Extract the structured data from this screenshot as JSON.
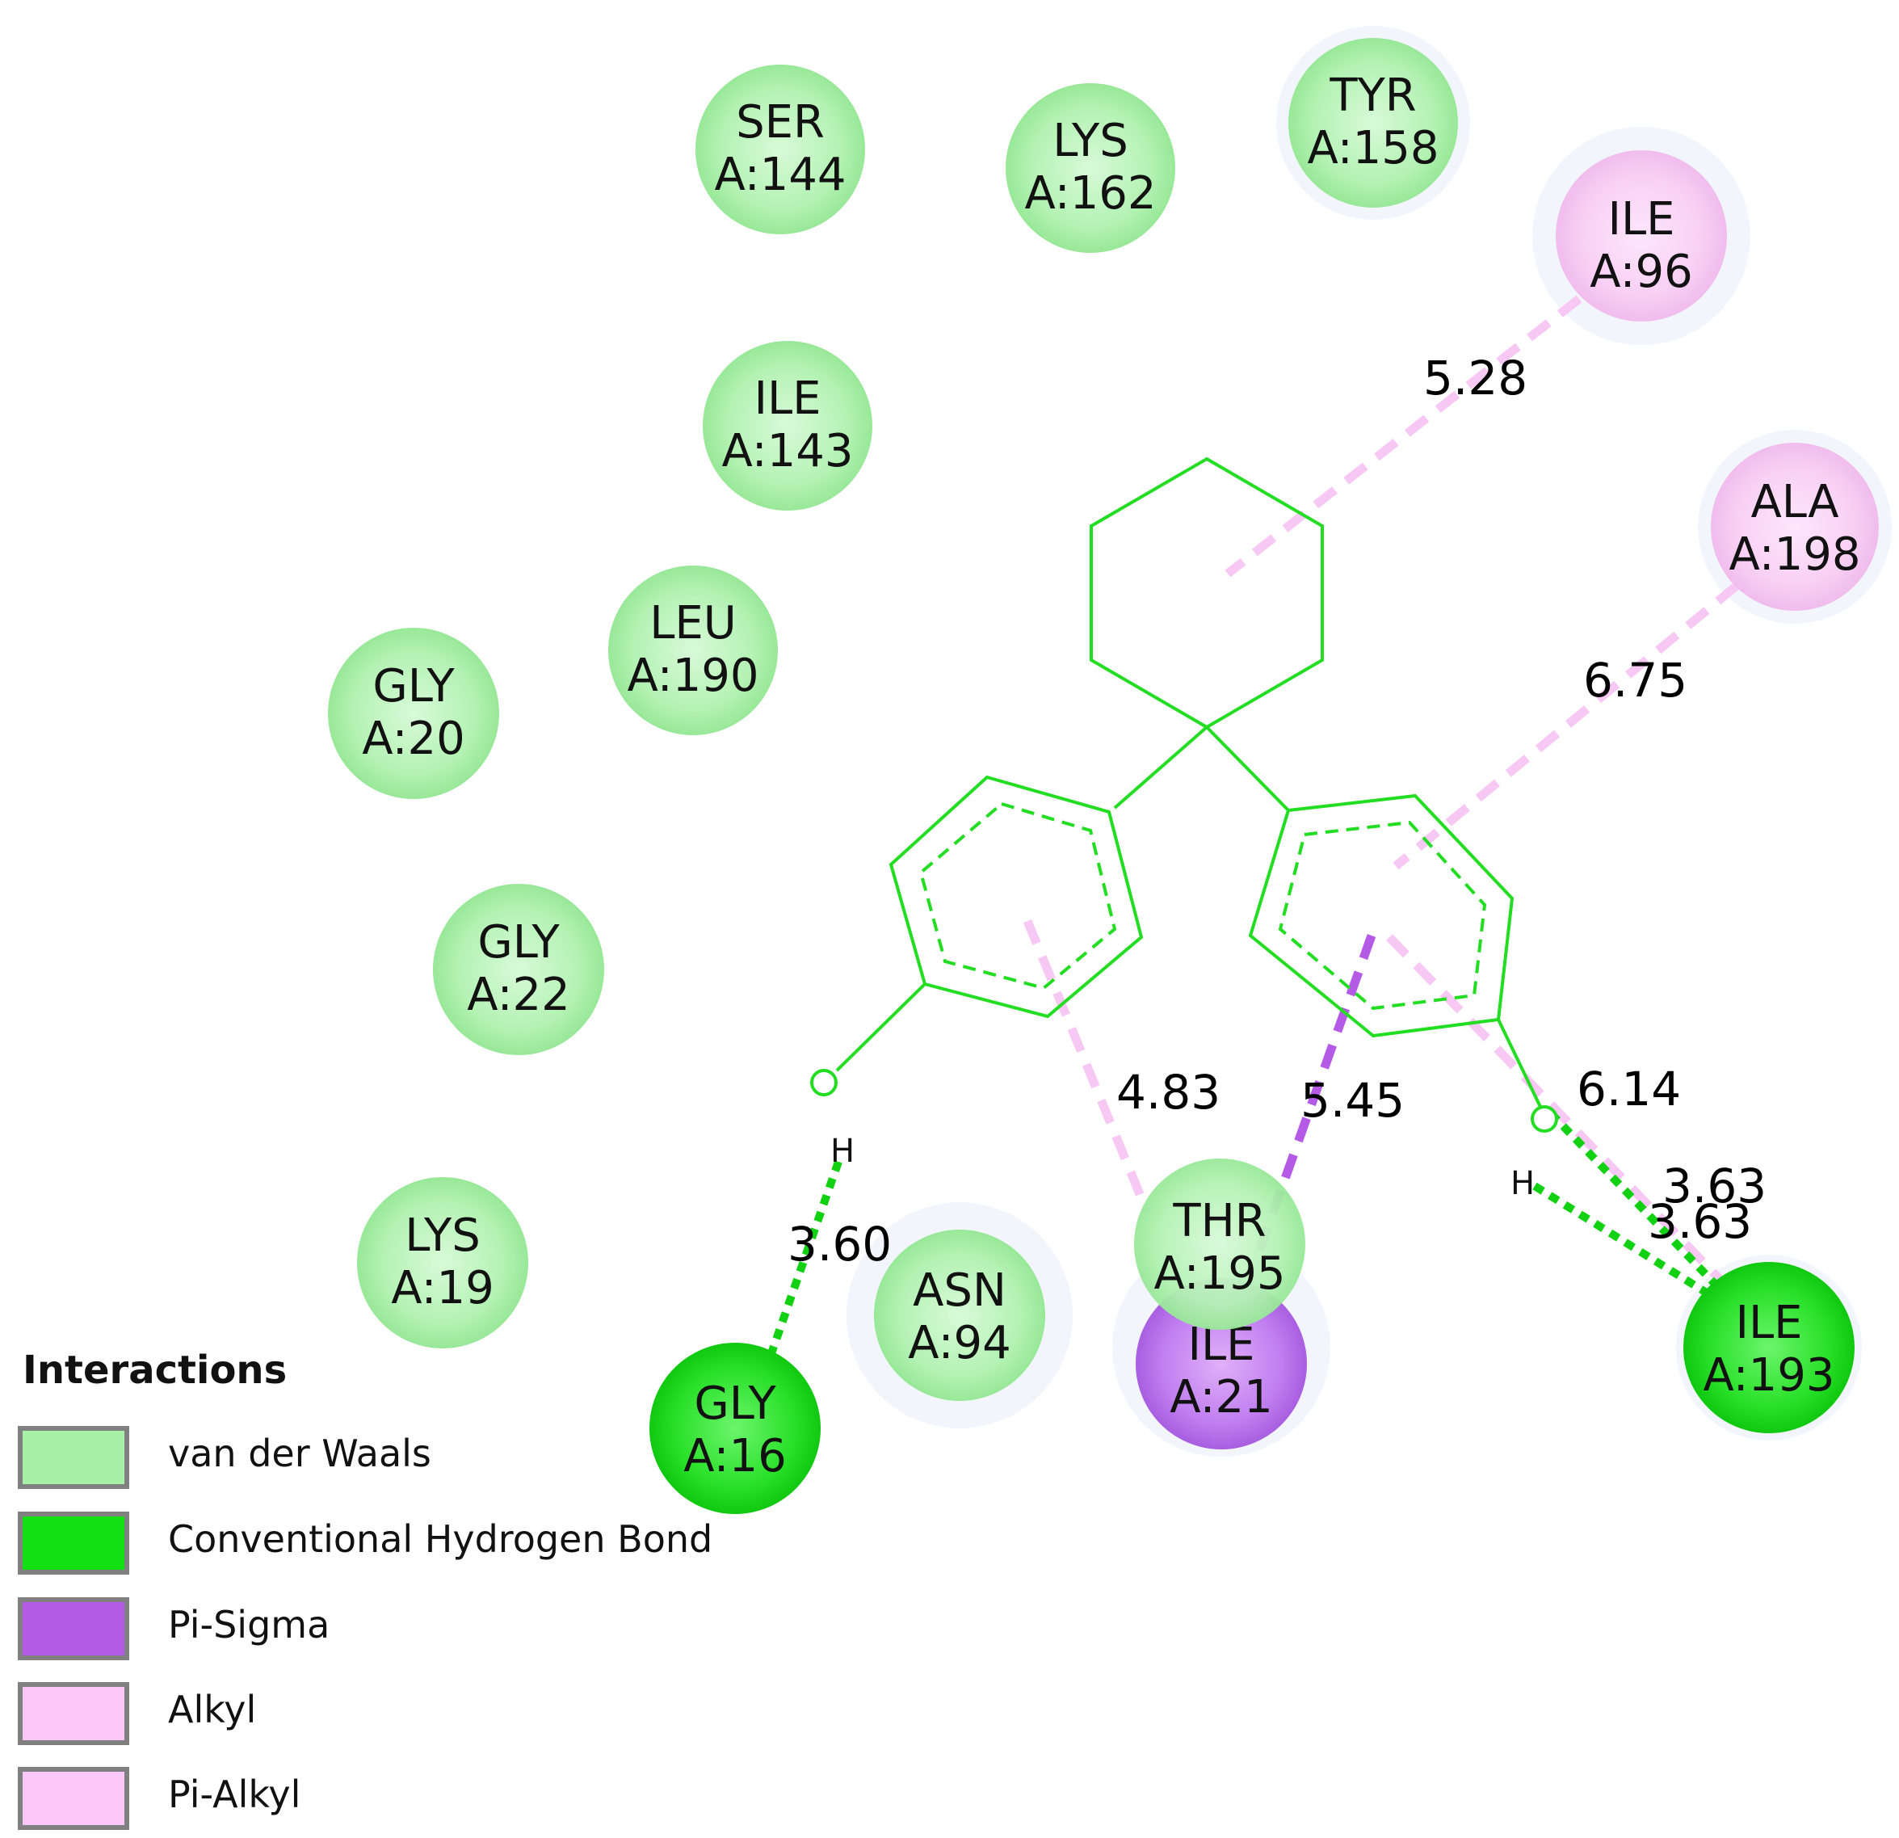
{
  "colors": {
    "vdw": "#a8f0a8",
    "hbond": "#12e012",
    "pi_sigma": "#b45ae6",
    "alkyl": "#f8c8f4",
    "ligand": "#22dd22"
  },
  "residues": [
    {
      "id": "ser144",
      "name": "SER",
      "chain": "A:144",
      "type": "vdw"
    },
    {
      "id": "lys162",
      "name": "LYS",
      "chain": "A:162",
      "type": "vdw"
    },
    {
      "id": "tyr158",
      "name": "TYR",
      "chain": "A:158",
      "type": "vdw"
    },
    {
      "id": "ile96",
      "name": "ILE",
      "chain": "A:96",
      "type": "alkyl"
    },
    {
      "id": "ile143",
      "name": "ILE",
      "chain": "A:143",
      "type": "vdw"
    },
    {
      "id": "ala198",
      "name": "ALA",
      "chain": "A:198",
      "type": "alkyl"
    },
    {
      "id": "leu190",
      "name": "LEU",
      "chain": "A:190",
      "type": "vdw"
    },
    {
      "id": "gly20",
      "name": "GLY",
      "chain": "A:20",
      "type": "vdw"
    },
    {
      "id": "gly22",
      "name": "GLY",
      "chain": "A:22",
      "type": "vdw"
    },
    {
      "id": "lys19",
      "name": "LYS",
      "chain": "A:19",
      "type": "vdw"
    },
    {
      "id": "gly16",
      "name": "GLY",
      "chain": "A:16",
      "type": "hbond"
    },
    {
      "id": "asn94",
      "name": "ASN",
      "chain": "A:94",
      "type": "vdw"
    },
    {
      "id": "ile21",
      "name": "ILE",
      "chain": "A:21",
      "type": "pi_sigma"
    },
    {
      "id": "thr195",
      "name": "THR",
      "chain": "A:195",
      "type": "vdw"
    },
    {
      "id": "ile193",
      "name": "ILE",
      "chain": "A:193",
      "type": "hbond"
    }
  ],
  "interactions": [
    {
      "id": "ile96-alkyl",
      "type": "alkyl",
      "distance": "5.28"
    },
    {
      "id": "ala198-pialkyl",
      "type": "alkyl",
      "distance": "6.75"
    },
    {
      "id": "ile21-pialkyl",
      "type": "alkyl",
      "distance": "4.83"
    },
    {
      "id": "ile21-pisigma",
      "type": "pi_sigma",
      "distance": "5.45"
    },
    {
      "id": "ile193-pialkyl",
      "type": "alkyl",
      "distance": "6.14"
    },
    {
      "id": "gly16-hbond",
      "type": "hbond",
      "distance": "3.60"
    },
    {
      "id": "ile193-hbond-1",
      "type": "hbond",
      "distance": "3.63"
    },
    {
      "id": "ile193-hbond-2",
      "type": "hbond",
      "distance": "3.63"
    }
  ],
  "ligand": {
    "hydrogen_label": "H"
  },
  "legend": {
    "title": "Interactions",
    "items": [
      {
        "label": "van der Waals",
        "color": "#a8f0a8"
      },
      {
        "label": "Conventional Hydrogen Bond",
        "color": "#12e012"
      },
      {
        "label": "Pi-Sigma",
        "color": "#b45ae6"
      },
      {
        "label": "Alkyl",
        "color": "#fdc8f8"
      },
      {
        "label": "Pi-Alkyl",
        "color": "#fdc8f8"
      }
    ]
  }
}
